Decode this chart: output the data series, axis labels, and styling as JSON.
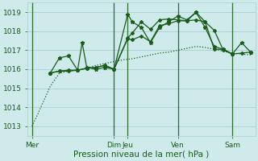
{
  "bg_color": "#ceeaea",
  "grid_color": "#aacece",
  "line_color": "#1a5c1a",
  "vline_color": "#2d6e2d",
  "title": "Pression niveau de la mer( hPa )",
  "title_fontsize": 7.5,
  "tick_fontsize": 6.5,
  "ylim": [
    1012.5,
    1019.5
  ],
  "yticks": [
    1013,
    1014,
    1015,
    1016,
    1017,
    1018,
    1019
  ],
  "day_labels": [
    "Mer",
    "Dim",
    "Jeu",
    "Ven",
    "Sam"
  ],
  "day_positions": [
    0,
    9,
    10.5,
    16,
    22
  ],
  "xlim": [
    -0.5,
    24.5
  ],
  "vlines": [
    0,
    9,
    10.5,
    16,
    22
  ],
  "series1_x": [
    0,
    0.5,
    2,
    3,
    4,
    5,
    6,
    7,
    8,
    9,
    10,
    11,
    12,
    13,
    14,
    15,
    16,
    17,
    18,
    19,
    20,
    21,
    22,
    23,
    24
  ],
  "series1_y": [
    1013.0,
    1013.5,
    1015.1,
    1015.8,
    1015.9,
    1015.95,
    1016.05,
    1016.2,
    1016.3,
    1016.4,
    1016.5,
    1016.55,
    1016.65,
    1016.75,
    1016.85,
    1016.9,
    1017.0,
    1017.1,
    1017.2,
    1017.15,
    1017.05,
    1016.95,
    1016.85,
    1016.8,
    1016.75
  ],
  "series2_x": [
    2,
    3,
    4,
    5,
    6,
    7,
    8,
    9,
    10.5,
    11,
    12,
    13,
    14,
    15,
    16,
    17,
    18,
    19,
    20,
    21,
    22,
    23,
    24
  ],
  "series2_y": [
    1015.8,
    1015.9,
    1015.9,
    1015.95,
    1016.05,
    1016.1,
    1016.2,
    1016.0,
    1017.6,
    1017.55,
    1017.75,
    1017.45,
    1018.3,
    1018.4,
    1018.55,
    1018.55,
    1018.6,
    1018.5,
    1018.05,
    1017.0,
    1016.8,
    1016.85,
    1016.9
  ],
  "series3_x": [
    2,
    3,
    4,
    5,
    5.5,
    6,
    7,
    8,
    9,
    10.5,
    11,
    12,
    13,
    14,
    15,
    16,
    17,
    18,
    19,
    20,
    21,
    22,
    23,
    24
  ],
  "series3_y": [
    1015.8,
    1016.6,
    1016.7,
    1015.95,
    1017.4,
    1016.1,
    1016.0,
    1016.1,
    1016.0,
    1018.9,
    1018.5,
    1018.2,
    1017.4,
    1018.2,
    1018.5,
    1018.8,
    1018.6,
    1019.0,
    1018.2,
    1017.2,
    1017.05,
    1016.8,
    1017.4,
    1016.9
  ],
  "series4_x": [
    2,
    3,
    4,
    5,
    6,
    7,
    8,
    9,
    10.5,
    11,
    12,
    13,
    14,
    15,
    16,
    17,
    18,
    19,
    20,
    21,
    22
  ],
  "series4_y": [
    1015.8,
    1015.9,
    1015.95,
    1015.95,
    1016.05,
    1016.1,
    1016.2,
    1016.0,
    1017.65,
    1017.9,
    1018.5,
    1018.1,
    1018.6,
    1018.65,
    1018.6,
    1018.55,
    1019.0,
    1018.5,
    1017.05,
    1017.05,
    1016.8
  ]
}
